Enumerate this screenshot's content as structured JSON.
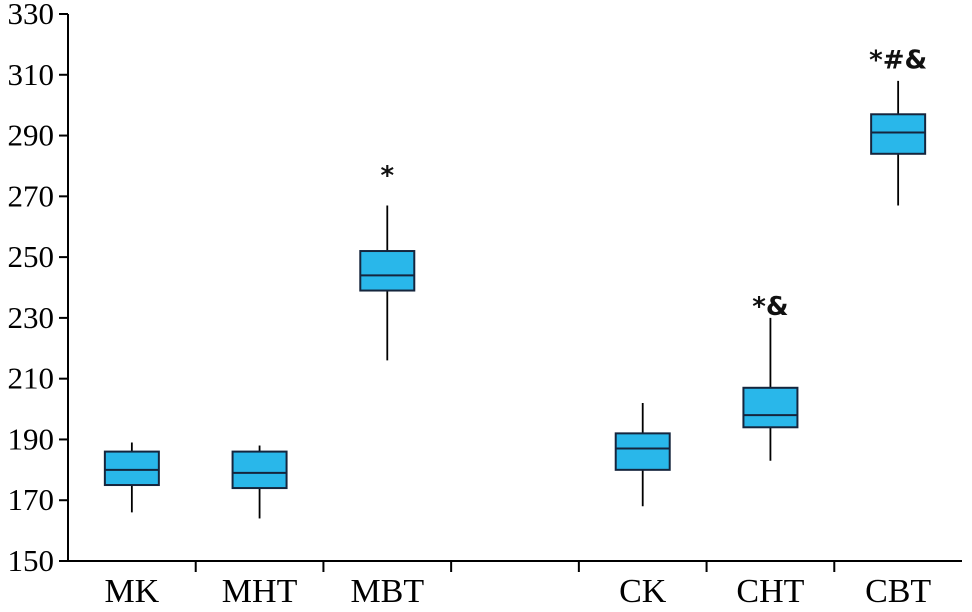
{
  "figure": {
    "background": "#ffffff",
    "description": "Box-and-whisker plot with two groups of three categories"
  },
  "chart_data": {
    "type": "boxplot",
    "title": "",
    "xlabel": "",
    "ylabel": "",
    "ylim": [
      150,
      330
    ],
    "yticks": [
      150,
      170,
      190,
      210,
      230,
      250,
      270,
      290,
      310,
      330
    ],
    "grid": false,
    "legend": false,
    "box_color": "#29b7ea",
    "box_edge_color": "#15253d",
    "whisker_color": "#000000",
    "axis_color": "#000000",
    "categories": [
      "MK",
      "MHT",
      "MBT",
      "CK",
      "CHT",
      "CBT"
    ],
    "series": [
      {
        "label": "MK",
        "whisker_low": 166,
        "q1": 175,
        "median": 180,
        "q3": 186,
        "whisker_high": 189,
        "annotation": "",
        "annotation_y": null
      },
      {
        "label": "MHT",
        "whisker_low": 164,
        "q1": 174,
        "median": 179,
        "q3": 186,
        "whisker_high": 188,
        "annotation": "",
        "annotation_y": null
      },
      {
        "label": "MBT",
        "whisker_low": 216,
        "q1": 239,
        "median": 244,
        "q3": 252,
        "whisker_high": 267,
        "annotation": "*",
        "annotation_y": 274
      },
      {
        "label": "CK",
        "whisker_low": 168,
        "q1": 180,
        "median": 187,
        "q3": 192,
        "whisker_high": 202,
        "annotation": "",
        "annotation_y": null
      },
      {
        "label": "CHT",
        "whisker_low": 183,
        "q1": 194,
        "median": 198,
        "q3": 207,
        "whisker_high": 230,
        "annotation": "*&",
        "annotation_y": 231
      },
      {
        "label": "CBT",
        "whisker_low": 267,
        "q1": 284,
        "median": 291,
        "q3": 297,
        "whisker_high": 308,
        "annotation": "*#&",
        "annotation_y": 312
      }
    ]
  }
}
